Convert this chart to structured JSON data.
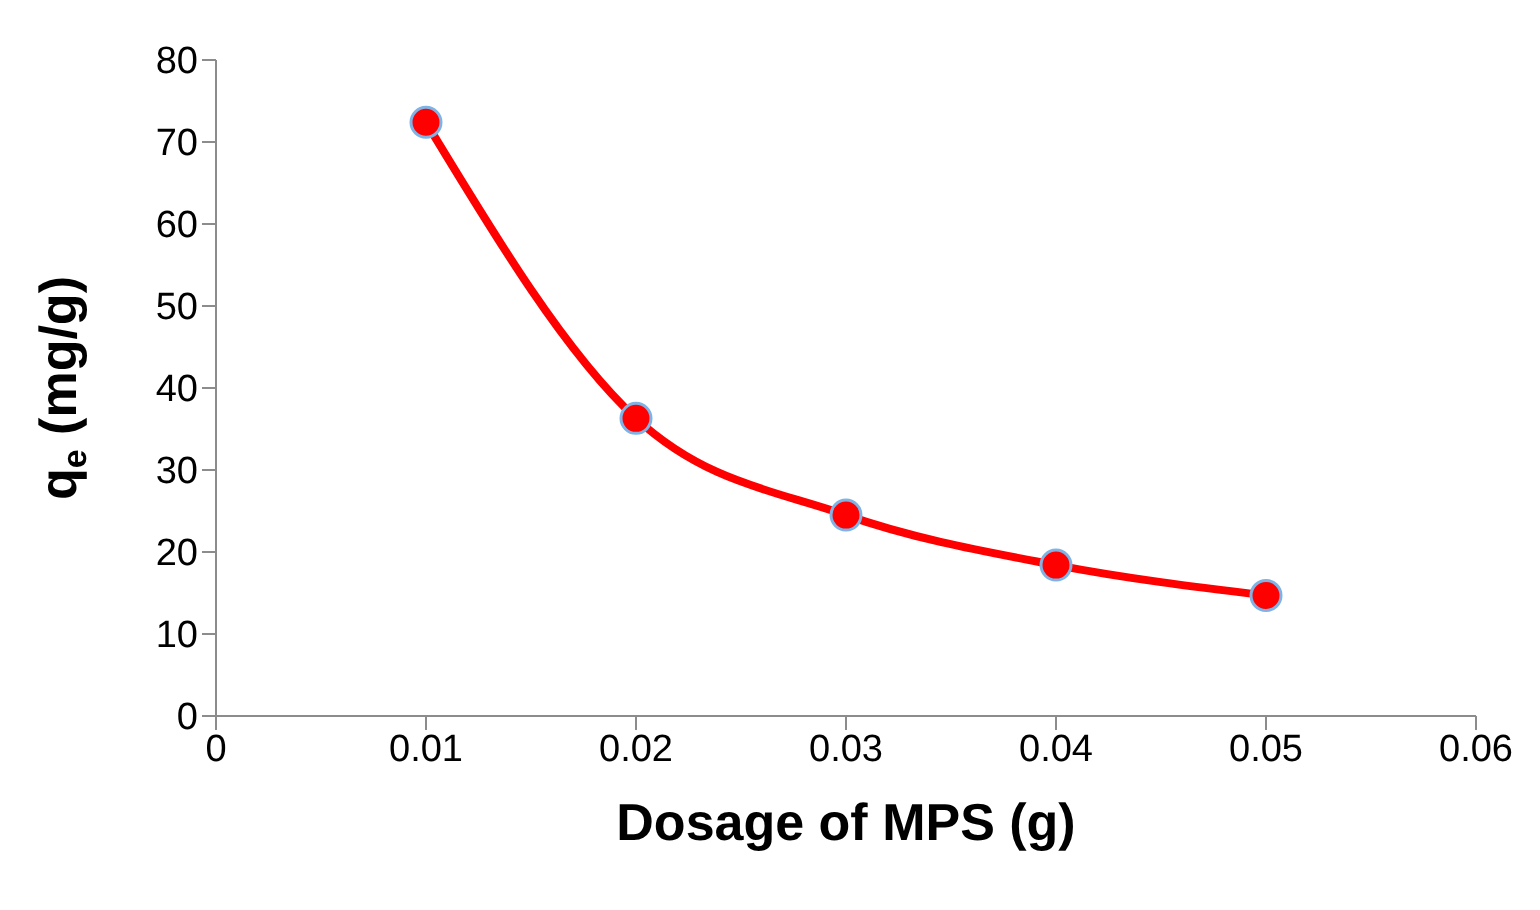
{
  "chart_data": {
    "type": "line",
    "xlabel": "Dosage of MPS (g)",
    "ylabel": "q$_{e}$ (mg/g)",
    "x": [
      0.01,
      0.02,
      0.03,
      0.04,
      0.05
    ],
    "series": [
      {
        "color": "#ff0000",
        "values": [
          72.4,
          36.3,
          24.5,
          18.4,
          14.7
        ]
      }
    ],
    "xlim": [
      0,
      0.06
    ],
    "xticks": [
      0,
      0.01,
      0.02,
      0.03,
      0.04,
      0.05,
      0.06
    ],
    "ylim": [
      0,
      80
    ],
    "yticks": [
      0,
      10,
      20,
      30,
      40,
      50,
      60,
      70,
      80
    ],
    "grid": false,
    "legend": false,
    "marker": "circle",
    "line_style": "solid"
  }
}
